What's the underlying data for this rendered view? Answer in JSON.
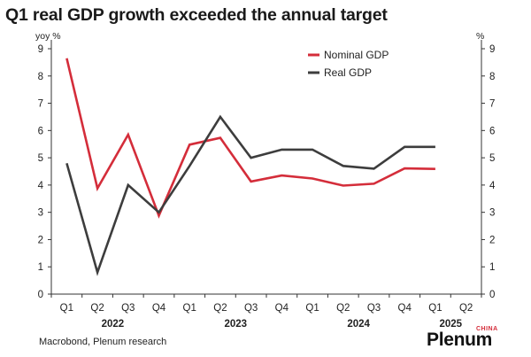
{
  "header": {
    "title": "Q1 real GDP growth exceeded the annual target"
  },
  "footer": {
    "source": "Macrobond, Plenum research",
    "brand": "Plenum",
    "brand_sub": "CHINA"
  },
  "colors": {
    "nominal": "#d42d3a",
    "real": "#3d3d3d"
  },
  "chart_data": {
    "type": "line",
    "y_unit_left": "yoy %",
    "y_unit_right": "%",
    "ylim": [
      0,
      9
    ],
    "yticks": [
      0,
      1,
      2,
      3,
      4,
      5,
      6,
      7,
      8,
      9
    ],
    "categories": [
      "Q1",
      "Q2",
      "Q3",
      "Q4",
      "Q1",
      "Q2",
      "Q3",
      "Q4",
      "Q1",
      "Q2",
      "Q3",
      "Q4",
      "Q1",
      "Q2"
    ],
    "year_labels": [
      {
        "label": "2022",
        "start": 0,
        "end": 3
      },
      {
        "label": "2023",
        "start": 4,
        "end": 7
      },
      {
        "label": "2024",
        "start": 8,
        "end": 11
      },
      {
        "label": "2025",
        "start": 12,
        "end": 13
      }
    ],
    "legend_position": "top-right",
    "grid": false,
    "series": [
      {
        "name": "Nominal GDP",
        "color_key": "nominal",
        "values": [
          8.65,
          3.88,
          5.85,
          2.88,
          5.48,
          5.73,
          4.13,
          4.35,
          4.24,
          3.98,
          4.05,
          4.61,
          4.59,
          null
        ]
      },
      {
        "name": "Real GDP",
        "color_key": "real",
        "values": [
          4.8,
          0.8,
          4.0,
          3.0,
          4.7,
          6.5,
          5.0,
          5.3,
          5.3,
          4.7,
          4.6,
          5.4,
          5.4,
          null
        ]
      }
    ]
  }
}
